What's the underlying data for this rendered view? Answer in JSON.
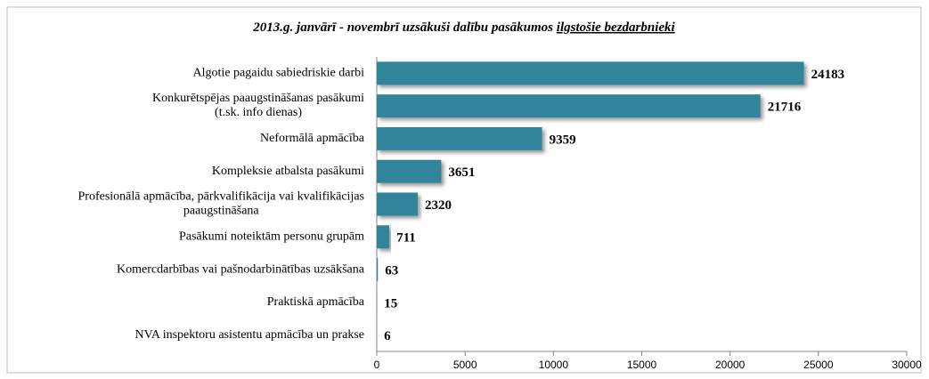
{
  "chart_data": {
    "type": "bar",
    "orientation": "horizontal",
    "title": {
      "text": "2013.g. janvārī - novembrī uzsākuši dalību pasākumos",
      "underlined": "ilgstošie bezdarbnieki"
    },
    "categories": [
      "Algotie pagaidu sabiedriskie darbi",
      "Konkurētspējas paaugstināšanas pasākumi\n(t.sk. info dienas)",
      "Neformālā apmācība",
      "Kompleksie atbalsta pasākumi",
      "Profesionālā apmācība, pārkvalifikācija vai kvalifikācijas\npaaugstināšana",
      "Pasākumi noteiktām personu grupām",
      "Komercdarbības vai pašnodarbinātības uzsākšana",
      "Praktiskā apmācība",
      "NVA inspektoru asistentu apmācība un prakse"
    ],
    "values": [
      24183,
      21716,
      9359,
      3651,
      2320,
      711,
      63,
      15,
      6
    ],
    "color": "#31849b",
    "xlim": [
      0,
      30000
    ],
    "xticks": [
      0,
      5000,
      10000,
      15000,
      20000,
      25000,
      30000
    ],
    "grid": false
  }
}
